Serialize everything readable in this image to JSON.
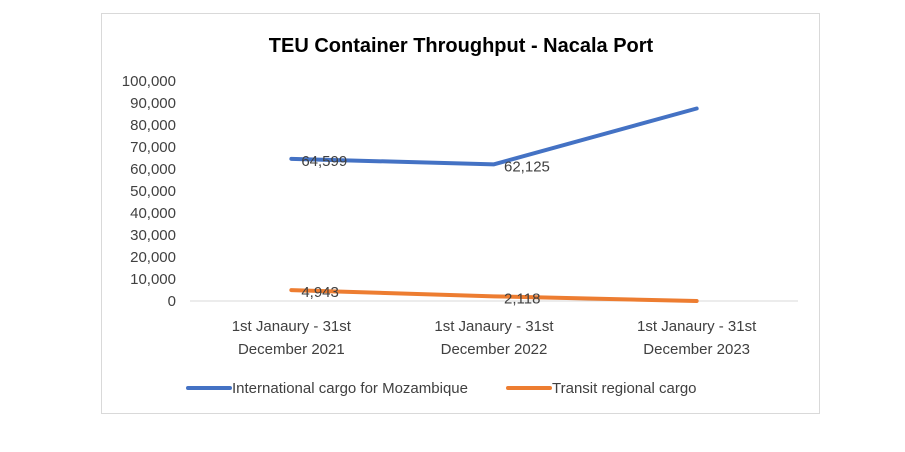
{
  "chart_data": {
    "type": "line",
    "title": "TEU Container Throughput - Nacala Port",
    "categories": [
      [
        "1st Janaury - 31st",
        "December 2021"
      ],
      [
        "1st Janaury - 31st",
        "December 2022"
      ],
      [
        "1st Janaury - 31st",
        "December 2023"
      ]
    ],
    "series": [
      {
        "name": "International cargo for Mozambique",
        "color": "#4472c4",
        "values": [
          64599,
          62125,
          87500
        ],
        "labels": [
          "64,599",
          "62,125",
          ""
        ]
      },
      {
        "name": "Transit regional cargo",
        "color": "#ed7d31",
        "values": [
          4943,
          2118,
          0
        ],
        "labels": [
          "4,943",
          "2,118",
          ""
        ]
      }
    ],
    "ylim": [
      0,
      100000
    ],
    "yticks": [
      "0",
      "10,000",
      "20,000",
      "30,000",
      "40,000",
      "50,000",
      "60,000",
      "70,000",
      "80,000",
      "90,000",
      "100,000"
    ],
    "grid": false,
    "legend": "bottom"
  }
}
